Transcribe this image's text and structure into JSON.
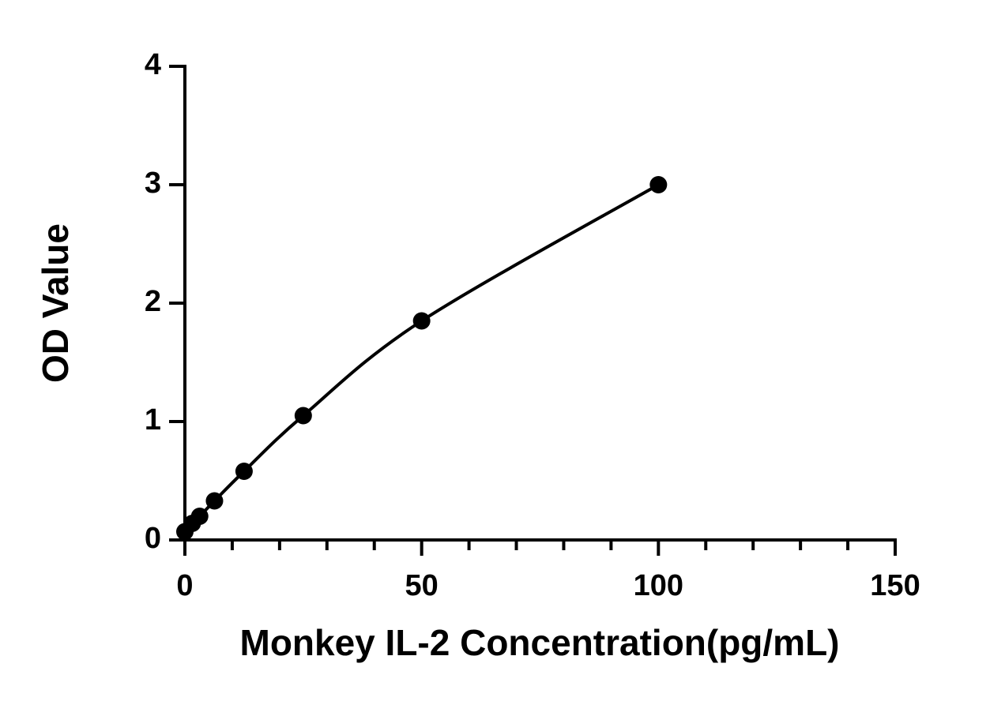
{
  "chart_data": {
    "type": "scatter",
    "xlabel": "Monkey IL-2 Concentration(pg/mL)",
    "ylabel": "OD Value",
    "x": [
      0,
      1.5625,
      3.125,
      6.25,
      12.5,
      25,
      50,
      100
    ],
    "series": [
      {
        "color": "#000000",
        "values": [
          0.07,
          0.14,
          0.2,
          0.33,
          0.58,
          1.05,
          1.85,
          3.0
        ]
      }
    ],
    "xlim": [
      0,
      150
    ],
    "xticks": [
      0,
      50,
      100,
      150
    ],
    "x_minor_ticks": [
      10,
      20,
      30,
      40,
      60,
      70,
      80,
      90,
      110,
      120,
      130,
      140
    ],
    "ylim": [
      0,
      4
    ],
    "yticks": [
      0,
      1,
      2,
      3,
      4
    ],
    "fit_curve": true
  }
}
